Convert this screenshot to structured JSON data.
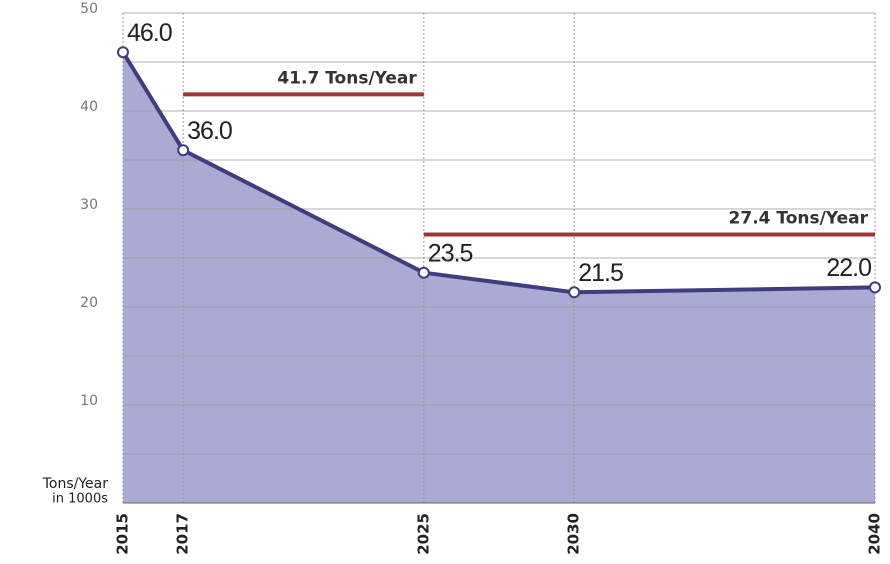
{
  "chart_data": {
    "type": "area",
    "x": [
      2015,
      2017,
      2025,
      2030,
      2040
    ],
    "values": [
      46,
      36,
      23.5,
      21.5,
      22
    ],
    "value_labels": [
      "46.0",
      "36.0",
      "23.5",
      "21.5",
      "22.0"
    ],
    "color": "#3f3d7e",
    "fill_color": "#aaaad5",
    "xlim": [
      2015,
      2040
    ],
    "xticks": [
      2015,
      2017,
      2025,
      2030,
      2040
    ],
    "ylim": [
      0,
      50
    ],
    "yticks": [
      10,
      20,
      30,
      40,
      50
    ],
    "minor_yticks": [
      5,
      15,
      25,
      35,
      45
    ],
    "grid": true,
    "ylabel": [
      "Tons/Year",
      "in 1000s"
    ],
    "annotations": [
      {
        "label": "41.7 Tons/Year",
        "value": 41.7,
        "x": [
          2017,
          2025
        ],
        "color": "#a03535"
      },
      {
        "label": "27.4 Tons/Year",
        "value": 27.4,
        "x": [
          2025,
          2040
        ],
        "color": "#a03535"
      }
    ]
  }
}
